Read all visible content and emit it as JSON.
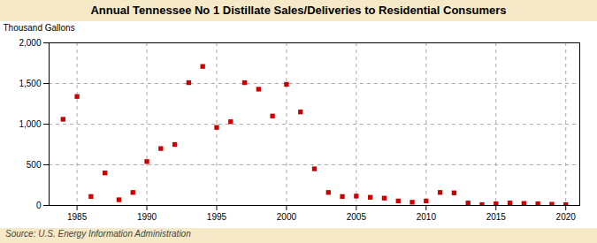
{
  "chart_data": {
    "type": "scatter",
    "title": "Annual Tennessee No 1 Distillate Sales/Deliveries to Residential Consumers",
    "ylabel": "Thousand Gallons",
    "source": "Source: U.S. Energy Information Administration",
    "x": [
      1984,
      1985,
      1986,
      1987,
      1988,
      1989,
      1990,
      1991,
      1992,
      1993,
      1994,
      1995,
      1996,
      1997,
      1998,
      1999,
      2000,
      2001,
      2002,
      2003,
      2004,
      2005,
      2006,
      2007,
      2008,
      2009,
      2010,
      2011,
      2012,
      2013,
      2014,
      2015,
      2016,
      2017,
      2018,
      2019,
      2020
    ],
    "values": [
      1060,
      1340,
      110,
      400,
      70,
      160,
      540,
      700,
      750,
      1510,
      1710,
      960,
      1030,
      1510,
      1430,
      1100,
      1490,
      1150,
      450,
      160,
      110,
      115,
      100,
      90,
      55,
      40,
      55,
      160,
      155,
      30,
      10,
      20,
      30,
      25,
      20,
      15,
      10
    ],
    "color": "#cc0000",
    "marker": "square",
    "xlim": [
      1983,
      2021
    ],
    "xticks": [
      1985,
      1990,
      1995,
      2000,
      2005,
      2010,
      2015,
      2020
    ],
    "ylim": [
      0,
      2000
    ],
    "yticks": [
      0,
      500,
      {
        "value": 1000,
        "label": "1,000"
      },
      {
        "value": 1500,
        "label": "1,500"
      },
      {
        "value": 2000,
        "label": "2,000"
      }
    ],
    "grid": true
  }
}
